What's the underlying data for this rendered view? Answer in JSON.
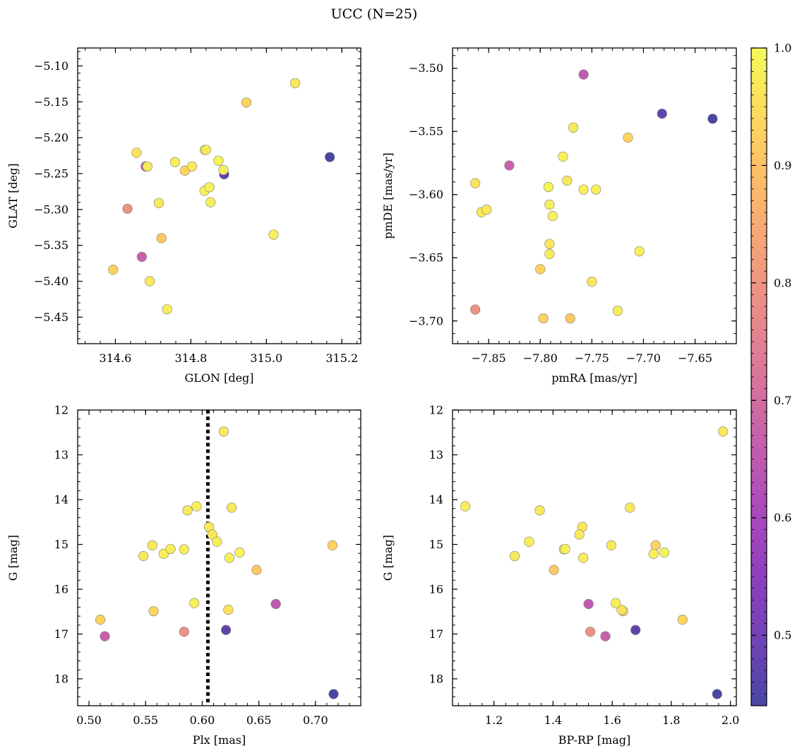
{
  "figure": {
    "title": "UCC (N=25)"
  },
  "colormap": {
    "name": "plasma",
    "alpha": 0.75,
    "range": [
      0.44,
      1.0
    ],
    "ticks": [
      1.0,
      0.9,
      0.8,
      0.7,
      0.6,
      0.5
    ],
    "tick_labels": [
      "1.0",
      "0.9",
      "0.8",
      "0.7",
      "0.6",
      "0.5"
    ]
  },
  "stars": [
    {
      "glon": 314.594,
      "glat": -5.384,
      "pmra": -7.797,
      "pmde": -3.698,
      "plx": 0.51,
      "g": 16.68,
      "bprp": 1.838,
      "p": 0.93
    },
    {
      "glon": 314.632,
      "glat": -5.299,
      "pmra": -7.863,
      "pmde": -3.691,
      "plx": 0.584,
      "g": 16.95,
      "bprp": 1.526,
      "p": 0.79
    },
    {
      "glon": 314.656,
      "glat": -5.221,
      "pmra": -7.863,
      "pmde": -3.591,
      "plx": 0.623,
      "g": 16.46,
      "bprp": 1.632,
      "p": 0.96
    },
    {
      "glon": 314.67,
      "glat": -5.366,
      "pmra": -7.83,
      "pmde": -3.577,
      "plx": 0.514,
      "g": 17.05,
      "bprp": 1.577,
      "p": 0.67
    },
    {
      "glon": 314.68,
      "glat": -5.24,
      "pmra": -7.758,
      "pmde": -3.505,
      "plx": 0.665,
      "g": 16.33,
      "bprp": 1.52,
      "p": 0.65
    },
    {
      "glon": 314.685,
      "glat": -5.24,
      "pmra": -7.857,
      "pmde": -3.614,
      "plx": 0.556,
      "g": 15.02,
      "bprp": 1.597,
      "p": 0.97
    },
    {
      "glon": 314.691,
      "glat": -5.4,
      "pmra": -7.75,
      "pmde": -3.669,
      "plx": 0.587,
      "g": 14.24,
      "bprp": 1.355,
      "p": 0.97
    },
    {
      "glon": 314.715,
      "glat": -5.291,
      "pmra": -7.852,
      "pmde": -3.612,
      "plx": 0.548,
      "g": 15.26,
      "bprp": 1.27,
      "p": 0.97
    },
    {
      "glon": 314.722,
      "glat": -5.34,
      "pmra": -7.771,
      "pmde": -3.698,
      "plx": 0.648,
      "g": 15.57,
      "bprp": 1.403,
      "p": 0.91
    },
    {
      "glon": 314.737,
      "glat": -5.439,
      "pmra": -7.725,
      "pmde": -3.692,
      "plx": 0.566,
      "g": 15.21,
      "bprp": 1.74,
      "p": 0.98
    },
    {
      "glon": 314.758,
      "glat": -5.234,
      "pmra": -7.778,
      "pmde": -3.57,
      "plx": 0.595,
      "g": 14.15,
      "bprp": 1.103,
      "p": 0.98
    },
    {
      "glon": 314.784,
      "glat": -5.246,
      "pmra": -7.8,
      "pmde": -3.659,
      "plx": 0.557,
      "g": 16.49,
      "bprp": 1.637,
      "p": 0.93
    },
    {
      "glon": 314.803,
      "glat": -5.24,
      "pmra": -7.768,
      "pmde": -3.547,
      "plx": 0.626,
      "g": 14.18,
      "bprp": 1.66,
      "p": 0.97
    },
    {
      "glon": 314.836,
      "glat": -5.274,
      "pmra": -7.791,
      "pmde": -3.608,
      "plx": 0.584,
      "g": 15.11,
      "bprp": 1.437,
      "p": 0.98
    },
    {
      "glon": 314.837,
      "glat": -5.217,
      "pmra": -7.791,
      "pmde": -3.639,
      "plx": 0.606,
      "g": 14.61,
      "bprp": 1.499,
      "p": 0.97
    },
    {
      "glon": 314.84,
      "glat": -5.217,
      "pmra": -7.791,
      "pmde": -3.647,
      "plx": 0.609,
      "g": 14.78,
      "bprp": 1.489,
      "p": 0.97
    },
    {
      "glon": 314.849,
      "glat": -5.269,
      "pmra": -7.788,
      "pmde": -3.617,
      "plx": 0.613,
      "g": 14.94,
      "bprp": 1.319,
      "p": 0.98
    },
    {
      "glon": 314.852,
      "glat": -5.29,
      "pmra": -7.758,
      "pmde": -3.596,
      "plx": 0.572,
      "g": 15.1,
      "bprp": 1.441,
      "p": 0.98
    },
    {
      "glon": 314.873,
      "glat": -5.232,
      "pmra": -7.792,
      "pmde": -3.594,
      "plx": 0.633,
      "g": 15.18,
      "bprp": 1.776,
      "p": 0.99
    },
    {
      "glon": 314.886,
      "glat": -5.245,
      "pmra": -7.746,
      "pmde": -3.596,
      "plx": 0.624,
      "g": 15.3,
      "bprp": 1.502,
      "p": 0.98
    },
    {
      "glon": 314.888,
      "glat": -5.251,
      "pmra": -7.682,
      "pmde": -3.536,
      "plx": 0.621,
      "g": 16.91,
      "bprp": 1.679,
      "p": 0.47
    },
    {
      "glon": 314.947,
      "glat": -5.151,
      "pmra": -7.715,
      "pmde": -3.555,
      "plx": 0.715,
      "g": 15.02,
      "bprp": 1.747,
      "p": 0.93
    },
    {
      "glon": 315.019,
      "glat": -5.335,
      "pmra": -7.704,
      "pmde": -3.645,
      "plx": 0.593,
      "g": 16.31,
      "bprp": 1.612,
      "p": 0.98
    },
    {
      "glon": 315.076,
      "glat": -5.124,
      "pmra": -7.774,
      "pmde": -3.589,
      "plx": 0.619,
      "g": 12.48,
      "bprp": 1.975,
      "p": 0.97
    },
    {
      "glon": 315.168,
      "glat": -5.227,
      "pmra": -7.633,
      "pmde": -3.54,
      "plx": 0.716,
      "g": 18.34,
      "bprp": 1.955,
      "p": 0.44
    }
  ],
  "panels": [
    {
      "id": "sky",
      "x": "glon",
      "y": "glat",
      "xlabel": "GLON [deg]",
      "ylabel": "GLAT [deg]",
      "xlim": [
        314.5,
        315.25
      ],
      "ylim": [
        -5.487,
        -5.075
      ],
      "invert_y": false,
      "xticks": [
        314.6,
        314.8,
        315.0,
        315.2
      ],
      "xticklabels": [
        "314.6",
        "314.8",
        "315.0",
        "315.2"
      ],
      "yticks": [
        -5.45,
        -5.4,
        -5.35,
        -5.3,
        -5.25,
        -5.2,
        -5.15,
        -5.1
      ],
      "yticklabels": [
        "−5.45",
        "−5.40",
        "−5.35",
        "−5.30",
        "−5.25",
        "−5.20",
        "−5.15",
        "−5.10"
      ],
      "xminor_step": 0.04,
      "yminor_step": 0.01
    },
    {
      "id": "pm",
      "x": "pmra",
      "y": "pmde",
      "xlabel": "pmRA [mas/yr]",
      "ylabel": "pmDE [mas/yr]",
      "xlim": [
        -7.885,
        -7.61
      ],
      "ylim": [
        -3.718,
        -3.484
      ],
      "invert_y": false,
      "xticks": [
        -7.85,
        -7.8,
        -7.75,
        -7.7,
        -7.65
      ],
      "xticklabels": [
        "−7.85",
        "−7.80",
        "−7.75",
        "−7.70",
        "−7.65"
      ],
      "yticks": [
        -3.7,
        -3.65,
        -3.6,
        -3.55,
        -3.5
      ],
      "yticklabels": [
        "−3.70",
        "−3.65",
        "−3.60",
        "−3.55",
        "−3.50"
      ],
      "xminor_step": 0.01,
      "yminor_step": 0.01
    },
    {
      "id": "plx",
      "x": "plx",
      "y": "g",
      "xlabel": "Plx [mas]",
      "ylabel": "G [mag]",
      "xlim": [
        0.49,
        0.74
      ],
      "ylim": [
        12.0,
        18.6
      ],
      "invert_y": true,
      "xticks": [
        0.5,
        0.55,
        0.6,
        0.65,
        0.7
      ],
      "xticklabels": [
        "0.50",
        "0.55",
        "0.60",
        "0.65",
        "0.70"
      ],
      "yticks": [
        12,
        13,
        14,
        15,
        16,
        17,
        18
      ],
      "yticklabels": [
        "12",
        "13",
        "14",
        "15",
        "16",
        "17",
        "18"
      ],
      "xminor_step": 0.01,
      "yminor_step": 0.2,
      "vline": 0.605
    },
    {
      "id": "cmd",
      "x": "bprp",
      "y": "g",
      "xlabel": "BP-RP [mag]",
      "ylabel": "G [mag]",
      "xlim": [
        1.06,
        2.02
      ],
      "ylim": [
        12.0,
        18.6
      ],
      "invert_y": true,
      "xticks": [
        1.2,
        1.4,
        1.6,
        1.8,
        2.0
      ],
      "xticklabels": [
        "1.2",
        "1.4",
        "1.6",
        "1.8",
        "2.0"
      ],
      "yticks": [
        12,
        13,
        14,
        15,
        16,
        17,
        18
      ],
      "yticklabels": [
        "12",
        "13",
        "14",
        "15",
        "16",
        "17",
        "18"
      ],
      "xminor_step": 0.04,
      "yminor_step": 0.2
    }
  ],
  "chart_data": [
    {
      "type": "scatter",
      "title": "UCC (N=25)",
      "xlabel": "GLON [deg]",
      "ylabel": "GLAT [deg]",
      "xlim": [
        314.5,
        315.25
      ],
      "ylim": [
        -5.487,
        -5.075
      ],
      "x": [
        314.594,
        314.632,
        314.656,
        314.67,
        314.68,
        314.685,
        314.691,
        314.715,
        314.722,
        314.737,
        314.758,
        314.784,
        314.803,
        314.836,
        314.837,
        314.84,
        314.849,
        314.852,
        314.873,
        314.886,
        314.888,
        314.947,
        315.019,
        315.076,
        315.168
      ],
      "y": [
        -5.384,
        -5.299,
        -5.221,
        -5.366,
        -5.24,
        -5.24,
        -5.4,
        -5.291,
        -5.34,
        -5.439,
        -5.234,
        -5.246,
        -5.24,
        -5.274,
        -5.217,
        -5.217,
        -5.269,
        -5.29,
        -5.232,
        -5.245,
        -5.251,
        -5.151,
        -5.335,
        -5.124,
        -5.227
      ]
    },
    {
      "type": "scatter",
      "xlabel": "pmRA [mas/yr]",
      "ylabel": "pmDE [mas/yr]",
      "xlim": [
        -7.885,
        -7.61
      ],
      "ylim": [
        -3.718,
        -3.484
      ],
      "x": [
        -7.797,
        -7.863,
        -7.863,
        -7.83,
        -7.758,
        -7.857,
        -7.75,
        -7.852,
        -7.771,
        -7.725,
        -7.778,
        -7.8,
        -7.768,
        -7.791,
        -7.791,
        -7.791,
        -7.788,
        -7.758,
        -7.792,
        -7.746,
        -7.682,
        -7.715,
        -7.704,
        -7.774,
        -7.633
      ],
      "y": [
        -3.698,
        -3.691,
        -3.591,
        -3.577,
        -3.505,
        -3.614,
        -3.669,
        -3.612,
        -3.698,
        -3.692,
        -3.57,
        -3.659,
        -3.547,
        -3.608,
        -3.639,
        -3.647,
        -3.617,
        -3.596,
        -3.594,
        -3.596,
        -3.536,
        -3.555,
        -3.645,
        -3.589,
        -3.54
      ]
    },
    {
      "type": "scatter",
      "xlabel": "Plx [mas]",
      "ylabel": "G [mag]",
      "xlim": [
        0.49,
        0.74
      ],
      "ylim": [
        18.6,
        12.0
      ],
      "x": [
        0.51,
        0.584,
        0.623,
        0.514,
        0.665,
        0.556,
        0.587,
        0.548,
        0.648,
        0.566,
        0.595,
        0.557,
        0.626,
        0.584,
        0.606,
        0.609,
        0.613,
        0.572,
        0.633,
        0.624,
        0.621,
        0.715,
        0.593,
        0.619,
        0.716
      ],
      "y": [
        16.68,
        16.95,
        16.46,
        17.05,
        16.33,
        15.02,
        14.24,
        15.26,
        15.57,
        15.21,
        14.15,
        16.49,
        14.18,
        15.11,
        14.61,
        14.78,
        14.94,
        15.1,
        15.18,
        15.3,
        16.91,
        15.02,
        16.31,
        12.48,
        18.34
      ]
    },
    {
      "type": "scatter",
      "xlabel": "BP-RP [mag]",
      "ylabel": "G [mag]",
      "xlim": [
        1.06,
        2.02
      ],
      "ylim": [
        18.6,
        12.0
      ],
      "x": [
        1.838,
        1.526,
        1.632,
        1.577,
        1.52,
        1.597,
        1.355,
        1.27,
        1.403,
        1.74,
        1.103,
        1.637,
        1.66,
        1.437,
        1.499,
        1.489,
        1.319,
        1.441,
        1.776,
        1.502,
        1.679,
        1.747,
        1.612,
        1.975,
        1.955
      ],
      "y": [
        16.68,
        16.95,
        16.46,
        17.05,
        16.33,
        15.02,
        14.24,
        15.26,
        15.57,
        15.21,
        14.15,
        16.49,
        14.18,
        15.11,
        14.61,
        14.78,
        14.94,
        15.1,
        15.18,
        15.3,
        16.91,
        15.02,
        16.31,
        12.48,
        18.34
      ]
    }
  ]
}
